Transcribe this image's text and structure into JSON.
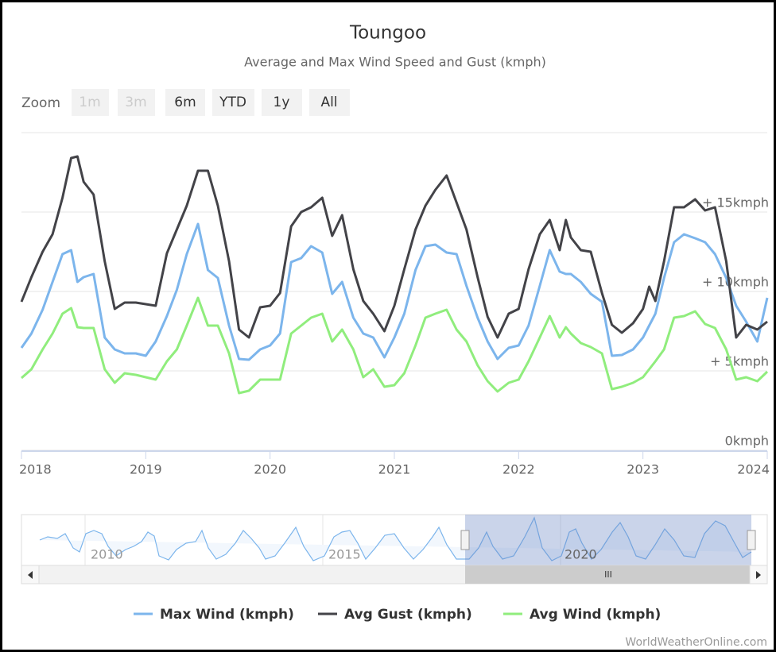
{
  "chart_data": {
    "type": "line",
    "title": "Toungoo",
    "subtitle": "Average and Max Wind Speed and Gust (kmph)",
    "zoom": {
      "label": "Zoom",
      "buttons": [
        "1m",
        "3m",
        "6m",
        "YTD",
        "1y",
        "All"
      ]
    },
    "x": [
      2018.0,
      2018.08,
      2018.17,
      2018.25,
      2018.33,
      2018.4,
      2018.45,
      2018.5,
      2018.58,
      2018.67,
      2018.75,
      2018.83,
      2018.92,
      2019.0,
      2019.08,
      2019.17,
      2019.25,
      2019.33,
      2019.42,
      2019.5,
      2019.58,
      2019.67,
      2019.75,
      2019.83,
      2019.92,
      2020.0,
      2020.08,
      2020.17,
      2020.25,
      2020.33,
      2020.42,
      2020.5,
      2020.58,
      2020.67,
      2020.75,
      2020.83,
      2020.92,
      2021.0,
      2021.08,
      2021.17,
      2021.25,
      2021.33,
      2021.42,
      2021.5,
      2021.58,
      2021.67,
      2021.75,
      2021.83,
      2021.92,
      2022.0,
      2022.08,
      2022.17,
      2022.25,
      2022.33,
      2022.38,
      2022.42,
      2022.5,
      2022.58,
      2022.67,
      2022.75,
      2022.83,
      2022.92,
      2023.0,
      2023.05,
      2023.1,
      2023.17,
      2023.25,
      2023.33,
      2023.42,
      2023.5,
      2023.58,
      2023.67,
      2023.75,
      2023.83,
      2023.92,
      2024.0
    ],
    "series": [
      {
        "name": "Max Wind (kmph)",
        "color": "#7cb5ec",
        "values": [
          6.45,
          7.35,
          8.85,
          10.6,
          12.35,
          12.6,
          10.6,
          10.9,
          11.1,
          7.1,
          6.35,
          6.1,
          6.1,
          5.95,
          6.85,
          8.45,
          10.1,
          12.35,
          14.25,
          11.35,
          10.85,
          7.85,
          5.75,
          5.7,
          6.35,
          6.6,
          7.35,
          11.85,
          12.1,
          12.85,
          12.45,
          9.85,
          10.6,
          8.35,
          7.35,
          7.1,
          5.85,
          7.1,
          8.6,
          11.35,
          12.85,
          12.95,
          12.45,
          12.35,
          10.35,
          8.35,
          6.85,
          5.75,
          6.45,
          6.6,
          7.85,
          10.35,
          12.6,
          11.25,
          11.1,
          11.1,
          10.6,
          9.85,
          9.35,
          5.95,
          6.0,
          6.35,
          7.1,
          7.85,
          8.6,
          10.85,
          13.1,
          13.6,
          13.35,
          13.1,
          12.35,
          10.85,
          9.1,
          8.1,
          6.85,
          9.6
        ]
      },
      {
        "name": "Avg Gust (kmph)",
        "color": "#434348",
        "values": [
          9.35,
          10.9,
          12.5,
          13.6,
          15.9,
          18.4,
          18.5,
          16.9,
          16.1,
          11.9,
          8.9,
          9.3,
          9.3,
          9.2,
          9.1,
          12.4,
          13.9,
          15.4,
          17.6,
          17.6,
          15.4,
          11.9,
          7.6,
          7.1,
          9.0,
          9.1,
          9.9,
          14.1,
          15.0,
          15.3,
          15.9,
          13.5,
          14.8,
          11.4,
          9.4,
          8.6,
          7.5,
          9.1,
          11.4,
          13.9,
          15.4,
          16.4,
          17.3,
          15.6,
          13.9,
          10.9,
          8.4,
          7.1,
          8.6,
          8.9,
          11.4,
          13.6,
          14.5,
          12.6,
          14.5,
          13.4,
          12.6,
          12.5,
          9.9,
          7.9,
          7.4,
          8.0,
          8.9,
          10.3,
          9.4,
          11.9,
          15.3,
          15.3,
          15.8,
          15.1,
          15.3,
          11.9,
          7.1,
          7.9,
          7.6,
          8.1
        ]
      },
      {
        "name": "Avg Wind (kmph)",
        "color": "#90ed7d",
        "values": [
          4.55,
          5.1,
          6.35,
          7.35,
          8.6,
          8.95,
          7.75,
          7.7,
          7.7,
          5.1,
          4.25,
          4.85,
          4.75,
          4.6,
          4.45,
          5.6,
          6.35,
          7.85,
          9.6,
          7.85,
          7.85,
          6.1,
          3.6,
          3.75,
          4.45,
          4.45,
          4.45,
          7.35,
          7.85,
          8.35,
          8.6,
          6.85,
          7.6,
          6.35,
          4.6,
          5.1,
          4.0,
          4.1,
          4.85,
          6.6,
          8.35,
          8.6,
          8.85,
          7.6,
          6.85,
          5.35,
          4.35,
          3.7,
          4.25,
          4.45,
          5.6,
          7.1,
          8.45,
          7.1,
          7.75,
          7.35,
          6.75,
          6.5,
          6.1,
          3.85,
          4.0,
          4.25,
          4.6,
          5.1,
          5.6,
          6.35,
          8.35,
          8.45,
          8.75,
          7.95,
          7.7,
          6.35,
          4.45,
          4.6,
          4.35,
          4.95
        ]
      }
    ],
    "xlim": [
      2018,
      2024
    ],
    "xticks": [
      2018,
      2019,
      2020,
      2021,
      2022,
      2023,
      2024
    ],
    "ylim": [
      0,
      20
    ],
    "yticks": [
      {
        "value": 0,
        "label": "0kmph"
      },
      {
        "value": 5,
        "label": "+ 5kmph"
      },
      {
        "value": 10,
        "label": "+ 10kmph"
      },
      {
        "value": 15,
        "label": "+ 15kmph"
      }
    ],
    "grid": true,
    "legend": "bottom",
    "navigator": {
      "labels": [
        "2010",
        "2015",
        "2020"
      ],
      "scroll_label": "III"
    },
    "credits": "WorldWeatherOnline.com"
  }
}
